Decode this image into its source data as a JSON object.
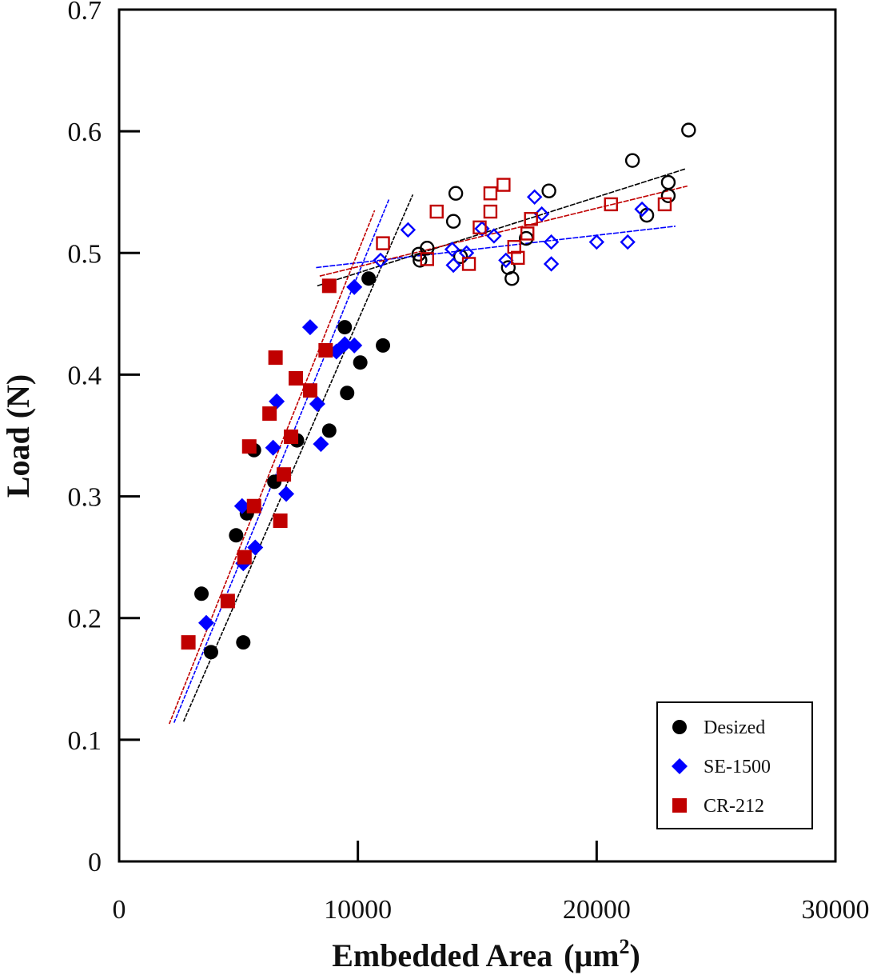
{
  "chart_data": {
    "type": "scatter",
    "title": "",
    "xlabel": "Embedded Area (μm²)",
    "xlabel_main": "Embedded Area",
    "xlabel_unit_open": "(μm",
    "xlabel_unit_sup": "2",
    "xlabel_unit_close": ")",
    "ylabel": "Load (N)",
    "xlim": [
      0,
      30000
    ],
    "ylim": [
      0,
      0.7
    ],
    "xticks": [
      0,
      10000,
      20000,
      30000
    ],
    "xtick_labels": [
      "0",
      "10000",
      "20000",
      "30000"
    ],
    "yticks": [
      0,
      0.1,
      0.2,
      0.3,
      0.4,
      0.5,
      0.6,
      0.7
    ],
    "ytick_labels": [
      "0",
      "0.1",
      "0.2",
      "0.3",
      "0.4",
      "0.5",
      "0.6",
      "0.7"
    ],
    "grid": false,
    "legend_position": "bottom-right",
    "series": [
      {
        "name": "Desized",
        "color": "#000000",
        "marker": "circle",
        "points_filled": [
          [
            3450,
            0.22
          ],
          [
            3850,
            0.172
          ],
          [
            5200,
            0.18
          ],
          [
            4900,
            0.268
          ],
          [
            5350,
            0.286
          ],
          [
            5650,
            0.338
          ],
          [
            6500,
            0.312
          ],
          [
            7450,
            0.346
          ],
          [
            8800,
            0.354
          ],
          [
            9550,
            0.385
          ],
          [
            9450,
            0.439
          ],
          [
            10100,
            0.41
          ],
          [
            11050,
            0.424
          ],
          [
            10450,
            0.479
          ]
        ],
        "points_open": [
          [
            12550,
            0.499
          ],
          [
            12900,
            0.504
          ],
          [
            12600,
            0.494
          ],
          [
            14000,
            0.526
          ],
          [
            14100,
            0.549
          ],
          [
            14300,
            0.497
          ],
          [
            16300,
            0.488
          ],
          [
            16450,
            0.479
          ],
          [
            17050,
            0.512
          ],
          [
            18000,
            0.551
          ],
          [
            21500,
            0.576
          ],
          [
            22100,
            0.531
          ],
          [
            23000,
            0.558
          ],
          [
            23000,
            0.547
          ],
          [
            23850,
            0.601
          ]
        ],
        "fit_lines": [
          {
            "x": [
              2700,
              12300
            ],
            "y": [
              0.115,
              0.548
            ]
          },
          {
            "x": [
              8300,
              23700
            ],
            "y": [
              0.473,
              0.569
            ]
          }
        ]
      },
      {
        "name": "SE-1500",
        "color": "#0000ff",
        "marker": "diamond",
        "points_filled": [
          [
            3650,
            0.196
          ],
          [
            5200,
            0.245
          ],
          [
            5700,
            0.258
          ],
          [
            5150,
            0.292
          ],
          [
            7000,
            0.302
          ],
          [
            6450,
            0.34
          ],
          [
            6600,
            0.378
          ],
          [
            8450,
            0.343
          ],
          [
            8300,
            0.376
          ],
          [
            8000,
            0.439
          ],
          [
            9100,
            0.419
          ],
          [
            9450,
            0.425
          ],
          [
            9850,
            0.424
          ],
          [
            9850,
            0.472
          ]
        ],
        "points_open": [
          [
            10950,
            0.494
          ],
          [
            12100,
            0.519
          ],
          [
            13950,
            0.503
          ],
          [
            14000,
            0.49
          ],
          [
            14550,
            0.5
          ],
          [
            15200,
            0.52
          ],
          [
            15700,
            0.514
          ],
          [
            16200,
            0.494
          ],
          [
            17400,
            0.546
          ],
          [
            17700,
            0.532
          ],
          [
            18100,
            0.509
          ],
          [
            18100,
            0.491
          ],
          [
            20000,
            0.509
          ],
          [
            21300,
            0.509
          ],
          [
            21900,
            0.536
          ]
        ],
        "fit_lines": [
          {
            "x": [
              2300,
              11300
            ],
            "y": [
              0.114,
              0.544
            ]
          },
          {
            "x": [
              8250,
              23300
            ],
            "y": [
              0.488,
              0.522
            ]
          }
        ]
      },
      {
        "name": "CR-212",
        "color": "#c00000",
        "marker": "square",
        "points_filled": [
          [
            2900,
            0.18
          ],
          [
            4550,
            0.214
          ],
          [
            5250,
            0.25
          ],
          [
            5650,
            0.292
          ],
          [
            6750,
            0.28
          ],
          [
            5450,
            0.341
          ],
          [
            6900,
            0.318
          ],
          [
            7200,
            0.349
          ],
          [
            6300,
            0.368
          ],
          [
            8000,
            0.387
          ],
          [
            7400,
            0.397
          ],
          [
            6550,
            0.414
          ],
          [
            8650,
            0.42
          ],
          [
            8800,
            0.473
          ]
        ],
        "points_open": [
          [
            11050,
            0.508
          ],
          [
            12900,
            0.495
          ],
          [
            13300,
            0.534
          ],
          [
            14650,
            0.491
          ],
          [
            15100,
            0.521
          ],
          [
            15550,
            0.534
          ],
          [
            15550,
            0.549
          ],
          [
            16100,
            0.556
          ],
          [
            16550,
            0.505
          ],
          [
            16700,
            0.496
          ],
          [
            17100,
            0.516
          ],
          [
            17250,
            0.528
          ],
          [
            20600,
            0.54
          ],
          [
            22850,
            0.54
          ]
        ],
        "fit_lines": [
          {
            "x": [
              2100,
              10700
            ],
            "y": [
              0.113,
              0.535
            ]
          },
          {
            "x": [
              8400,
              23800
            ],
            "y": [
              0.481,
              0.555
            ]
          }
        ]
      }
    ]
  }
}
